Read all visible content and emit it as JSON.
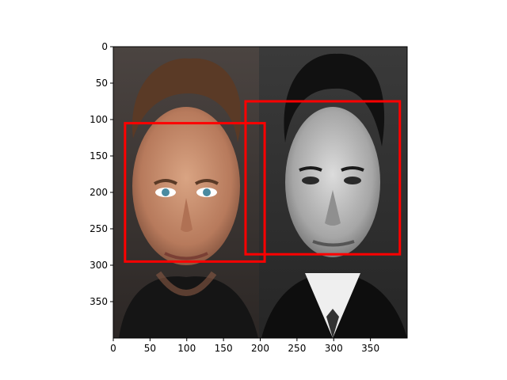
{
  "chart_data": {
    "type": "image",
    "image_description": "Side-by-side photo of two men's faces: left half in color, right half in black and white",
    "xlim": [
      0,
      400
    ],
    "ylim": [
      400,
      0
    ],
    "y_inverted": true,
    "x_ticks": [
      0,
      50,
      100,
      150,
      200,
      250,
      300,
      350
    ],
    "x_tick_labels": [
      "0",
      "50",
      "100",
      "150",
      "200",
      "250",
      "300",
      "350"
    ],
    "y_ticks": [
      0,
      50,
      100,
      150,
      200,
      250,
      300,
      350
    ],
    "y_tick_labels": [
      "0",
      "50",
      "100",
      "150",
      "200",
      "250",
      "300",
      "350"
    ],
    "grid": false,
    "annotations": [
      {
        "type": "rectangle",
        "color": "#ff0000",
        "x_min": 16,
        "y_min": 105,
        "x_max": 206,
        "y_max": 295
      },
      {
        "type": "rectangle",
        "color": "#ff0000",
        "x_min": 180,
        "y_min": 75,
        "x_max": 390,
        "y_max": 285
      }
    ]
  },
  "colors": {
    "box": "#ff0000",
    "left_background": "#3a3330",
    "right_background": "#2f2f2f"
  }
}
